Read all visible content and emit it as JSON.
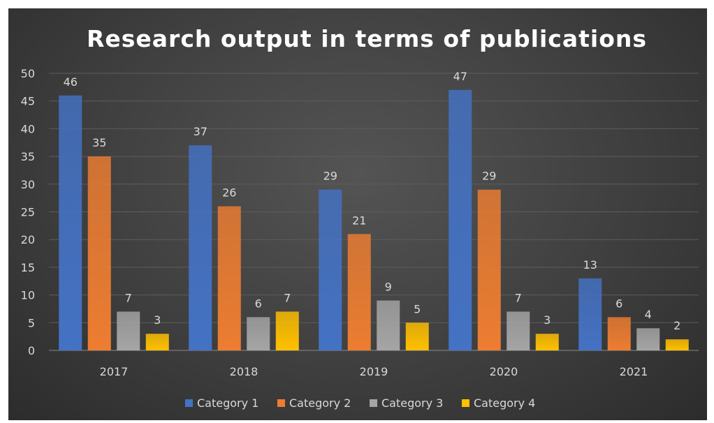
{
  "chart_data": {
    "type": "bar",
    "title": "Research output in terms of publications",
    "xlabel": "",
    "ylabel": "",
    "categories": [
      "2017",
      "2018",
      "2019",
      "2020",
      "2021"
    ],
    "series": [
      {
        "name": "Category 1",
        "values": [
          46,
          37,
          29,
          47,
          13
        ],
        "color": "#4472c4"
      },
      {
        "name": "Category 2",
        "values": [
          35,
          26,
          21,
          29,
          6
        ],
        "color": "#ed7d31"
      },
      {
        "name": "Category 3",
        "values": [
          7,
          6,
          9,
          7,
          4
        ],
        "color": "#a5a5a5"
      },
      {
        "name": "Category 4",
        "values": [
          3,
          7,
          5,
          3,
          2
        ],
        "color": "#ffc000"
      }
    ],
    "ylim": [
      0,
      50
    ],
    "yticks": [
      0,
      5,
      10,
      15,
      20,
      25,
      30,
      35,
      40,
      45,
      50
    ],
    "grid": true,
    "legend_position": "bottom"
  }
}
